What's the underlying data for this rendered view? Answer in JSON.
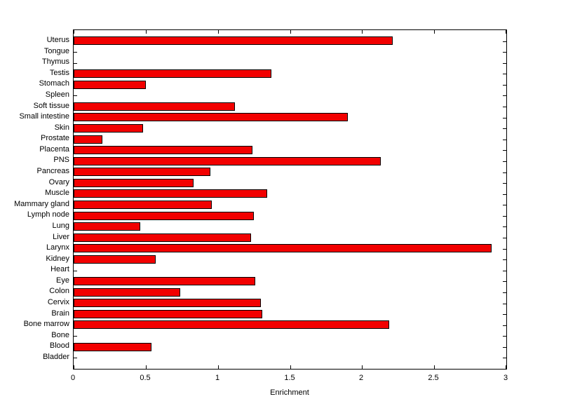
{
  "chart_data": {
    "type": "bar",
    "orientation": "horizontal",
    "title": "",
    "xlabel": "Enrichment",
    "ylabel": "",
    "xlim": [
      0,
      3
    ],
    "xticks": [
      0,
      0.5,
      1,
      1.5,
      2,
      2.5,
      3
    ],
    "xtick_labels": [
      "0",
      "0.5",
      "1",
      "1.5",
      "2",
      "2.5",
      "3"
    ],
    "grid": false,
    "legend": null,
    "bar_color": "#f20000",
    "bar_edge_color": "#000000",
    "bar_width_fraction": 0.8,
    "categories_top_to_bottom": [
      "Uterus",
      "Tongue",
      "Thymus",
      "Testis",
      "Stomach",
      "Spleen",
      "Soft tissue",
      "Small intestine",
      "Skin",
      "Prostate",
      "Placenta",
      "PNS",
      "Pancreas",
      "Ovary",
      "Muscle",
      "Mammary gland",
      "Lymph node",
      "Lung",
      "Liver",
      "Larynx",
      "Kidney",
      "Heart",
      "Eye",
      "Colon",
      "Cervix",
      "Brain",
      "Bone marrow",
      "Bone",
      "Blood",
      "Bladder"
    ],
    "values": [
      2.21,
      0,
      0,
      1.37,
      0.5,
      0,
      1.12,
      1.9,
      0.48,
      0.2,
      1.24,
      2.13,
      0.95,
      0.83,
      1.34,
      0.96,
      1.25,
      0.46,
      1.23,
      2.9,
      0.57,
      0,
      1.26,
      0.74,
      1.3,
      1.31,
      2.19,
      0,
      0.54,
      0
    ]
  }
}
